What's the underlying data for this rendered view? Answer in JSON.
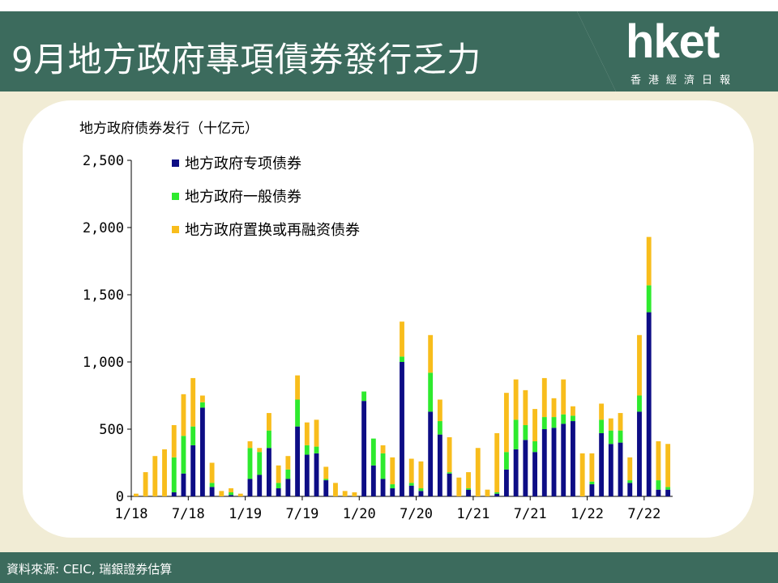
{
  "header": {
    "title": "9月地方政府專項債券發行乏力",
    "logo": "hket",
    "logo_sub": "香港經濟日報"
  },
  "footer": {
    "source": "資料來源: CEIC, 瑞銀證券估算"
  },
  "colors": {
    "header_bg": "#3c6b5d",
    "page_bg": "#f1ecd5",
    "special": "#0d0d85",
    "general": "#2eea2e",
    "refinance": "#f8bd1c"
  },
  "chart_data": {
    "type": "bar",
    "stacked": true,
    "title": "地方政府债券发行（十亿元）",
    "ylim": [
      0,
      2500
    ],
    "yticks": [
      0,
      500,
      1000,
      1500,
      2000,
      2500
    ],
    "ytick_labels": [
      "0",
      "500",
      "1,000",
      "1,500",
      "2,000",
      "2,500"
    ],
    "xtick_labels": [
      "1/18",
      "7/18",
      "1/19",
      "7/19",
      "1/20",
      "7/20",
      "1/21",
      "7/21",
      "1/22",
      "7/22"
    ],
    "xtick_months": [
      0,
      6,
      12,
      18,
      24,
      30,
      36,
      42,
      48,
      54
    ],
    "months": [
      "1/18",
      "2/18",
      "3/18",
      "4/18",
      "5/18",
      "6/18",
      "7/18",
      "8/18",
      "9/18",
      "10/18",
      "11/18",
      "12/18",
      "1/19",
      "2/19",
      "3/19",
      "4/19",
      "5/19",
      "6/19",
      "7/19",
      "8/19",
      "9/19",
      "10/19",
      "11/19",
      "12/19",
      "1/20",
      "2/20",
      "3/20",
      "4/20",
      "5/20",
      "6/20",
      "7/20",
      "8/20",
      "9/20",
      "10/20",
      "11/20",
      "12/20",
      "1/21",
      "2/21",
      "3/21",
      "4/21",
      "5/21",
      "6/21",
      "7/21",
      "8/21",
      "9/21",
      "10/21",
      "11/21",
      "12/21",
      "1/22",
      "2/22",
      "3/22",
      "4/22",
      "5/22",
      "6/22",
      "7/22",
      "8/22",
      "9/22"
    ],
    "legend_position": "top-left",
    "series": [
      {
        "name": "地方政府专项债券",
        "color": "#0d0d85",
        "values": [
          0,
          0,
          0,
          0,
          30,
          170,
          380,
          660,
          70,
          0,
          10,
          0,
          130,
          160,
          360,
          60,
          130,
          520,
          310,
          320,
          120,
          0,
          0,
          0,
          710,
          230,
          130,
          60,
          1000,
          80,
          40,
          630,
          460,
          170,
          0,
          50,
          0,
          0,
          20,
          200,
          350,
          420,
          330,
          500,
          510,
          540,
          560,
          0,
          90,
          470,
          390,
          400,
          100,
          630,
          1370,
          50,
          50
        ]
      },
      {
        "name": "地方政府一般债券",
        "color": "#2eea2e",
        "values": [
          0,
          0,
          0,
          0,
          260,
          280,
          140,
          40,
          30,
          0,
          20,
          0,
          230,
          170,
          130,
          40,
          70,
          200,
          70,
          50,
          10,
          0,
          0,
          0,
          70,
          200,
          190,
          30,
          40,
          20,
          20,
          290,
          100,
          10,
          0,
          10,
          0,
          0,
          10,
          130,
          220,
          110,
          80,
          90,
          80,
          70,
          40,
          0,
          20,
          100,
          100,
          90,
          20,
          120,
          200,
          70,
          20
        ]
      },
      {
        "name": "地方政府置换或再融资债券",
        "color": "#f8bd1c",
        "values": [
          20,
          180,
          300,
          350,
          240,
          310,
          360,
          50,
          150,
          40,
          30,
          20,
          50,
          30,
          130,
          130,
          100,
          180,
          170,
          200,
          90,
          100,
          40,
          30,
          0,
          0,
          60,
          200,
          260,
          180,
          200,
          280,
          160,
          260,
          140,
          120,
          360,
          50,
          440,
          440,
          300,
          260,
          240,
          290,
          140,
          260,
          70,
          320,
          210,
          120,
          90,
          130,
          170,
          450,
          360,
          290,
          320
        ]
      }
    ]
  }
}
